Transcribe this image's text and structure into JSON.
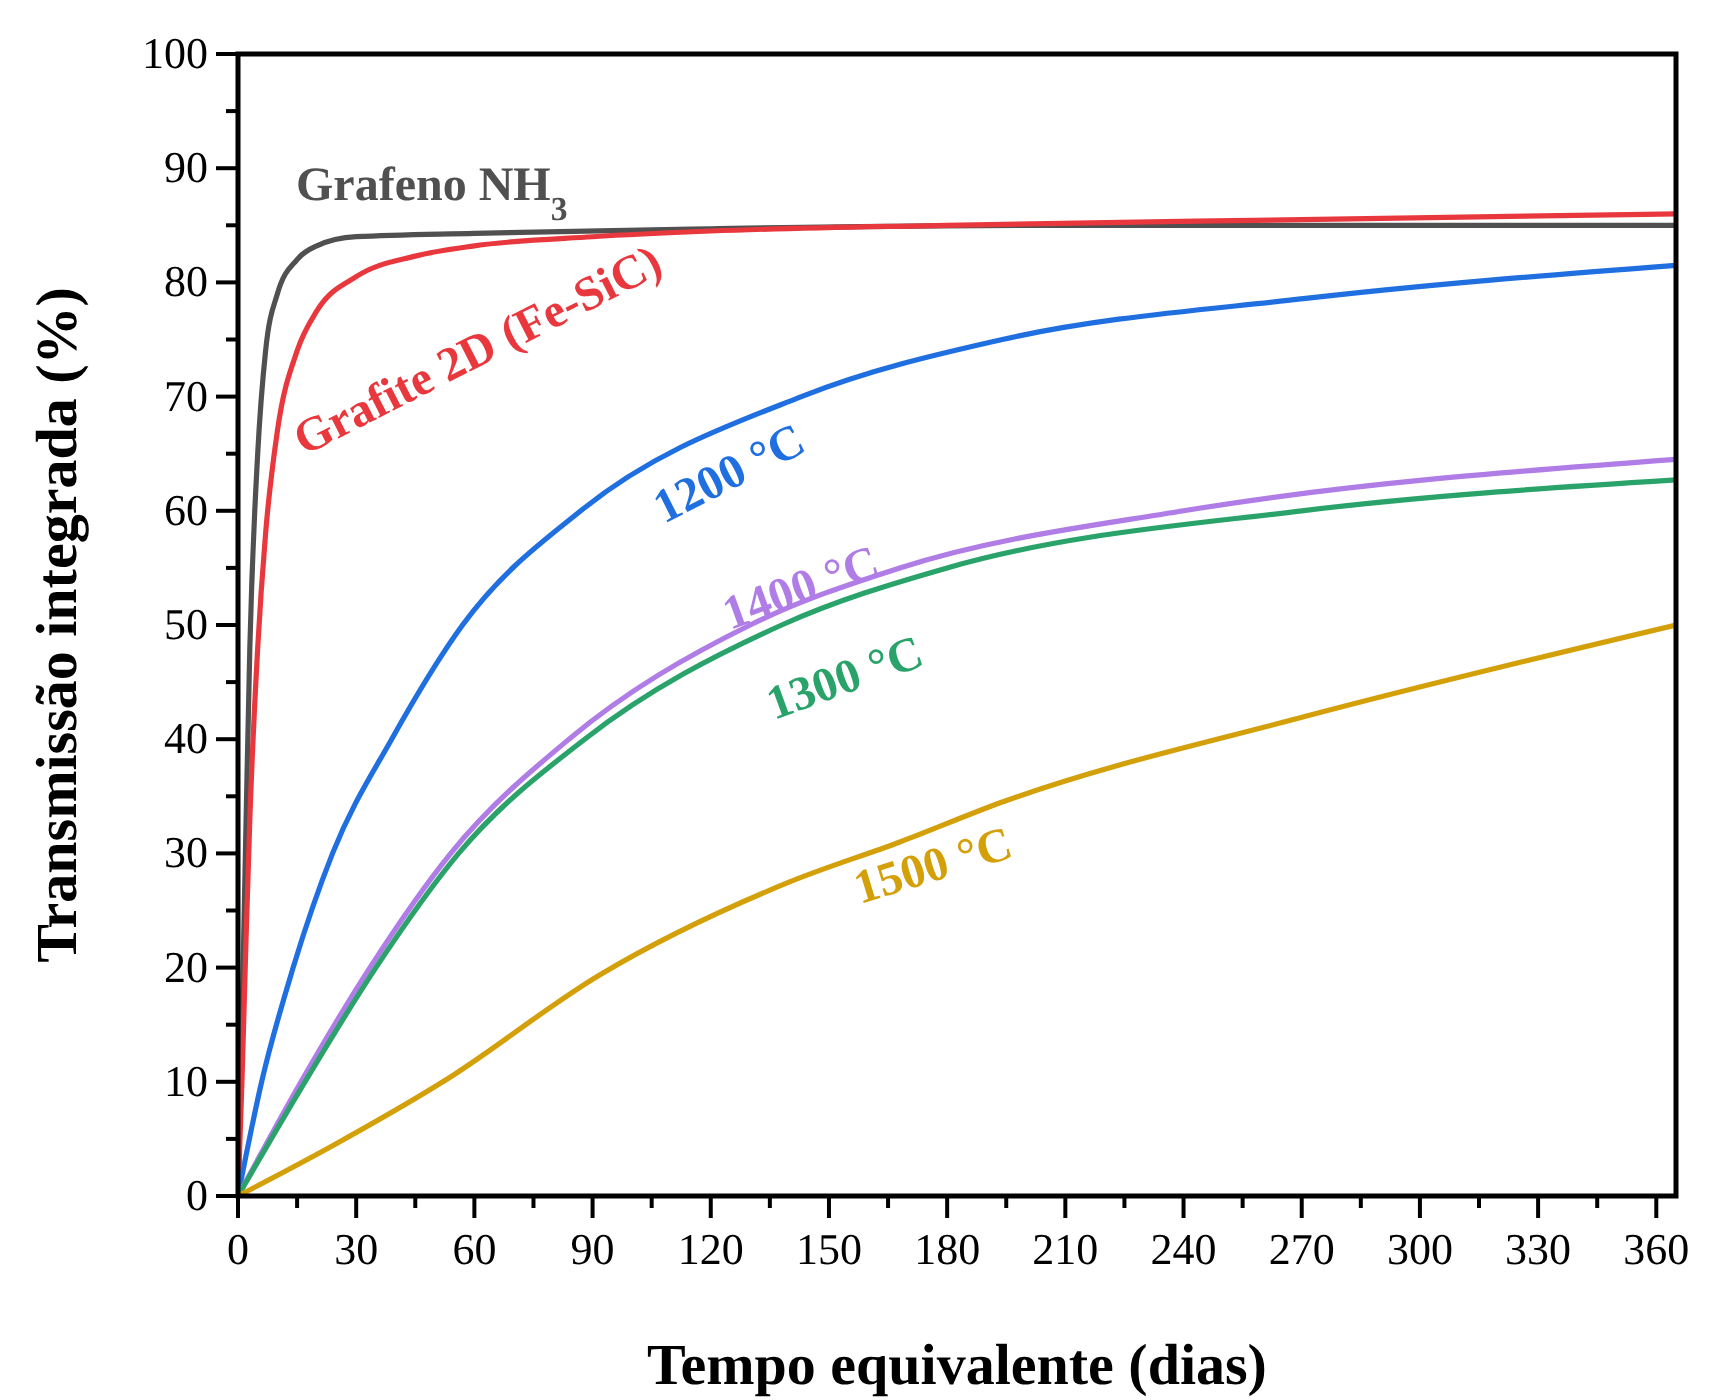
{
  "chart_data": {
    "type": "line",
    "xlabel": "Tempo equivalente (dias)",
    "ylabel": "Transmissão integrada (%)",
    "xlim": [
      0,
      365
    ],
    "ylim": [
      0,
      100
    ],
    "xticks": [
      0,
      {
        "value": 15,
        "label": null
      },
      30,
      {
        "value": 45,
        "label": null
      },
      60,
      {
        "value": 75,
        "label": null
      },
      90,
      {
        "value": 105,
        "label": null
      },
      120,
      {
        "value": 135,
        "label": null
      },
      150,
      {
        "value": 165,
        "label": null
      },
      180,
      {
        "value": 195,
        "label": null
      },
      210,
      {
        "value": 225,
        "label": null
      },
      240,
      {
        "value": 255,
        "label": null
      },
      270,
      {
        "value": 285,
        "label": null
      },
      300,
      {
        "value": 315,
        "label": null
      },
      330,
      {
        "value": 345,
        "label": null
      },
      360
    ],
    "yticks": [
      0,
      {
        "value": 5,
        "label": null
      },
      10,
      {
        "value": 15,
        "label": null
      },
      20,
      {
        "value": 25,
        "label": null
      },
      30,
      {
        "value": 35,
        "label": null
      },
      40,
      {
        "value": 45,
        "label": null
      },
      50,
      {
        "value": 55,
        "label": null
      },
      60,
      {
        "value": 65,
        "label": null
      },
      70,
      {
        "value": 75,
        "label": null
      },
      80,
      {
        "value": 85,
        "label": null
      },
      90,
      {
        "value": 95,
        "label": null
      },
      100
    ],
    "grid": false,
    "marker": "none",
    "line_style": "solid",
    "series": [
      {
        "name": "Grafeno NH$_{3}$",
        "color": "#505050",
        "x": [
          0,
          1,
          2,
          3,
          5,
          7,
          10,
          15,
          20,
          30,
          60,
          120,
          200,
          365
        ],
        "values": [
          0,
          15,
          32,
          48,
          65,
          74,
          79,
          82,
          83.2,
          84,
          84.3,
          84.7,
          85,
          85
        ]
      },
      {
        "name": "Grafite 2D (Fe-SiC)",
        "color": "#e8383d",
        "x": [
          0,
          1,
          2,
          3,
          5,
          7,
          10,
          15,
          20,
          30,
          45,
          60,
          90,
          120,
          180,
          270,
          365
        ],
        "values": [
          0,
          10,
          22,
          33,
          48,
          58,
          67,
          74,
          77.5,
          80.5,
          82.3,
          83.2,
          84,
          84.5,
          85,
          85.5,
          86
        ]
      },
      {
        "name": "1200 °C",
        "color": "#1f6fe0",
        "x": [
          0,
          6,
          14,
          24,
          39,
          57,
          87,
          143,
          194,
          271,
          365
        ],
        "values": [
          0,
          10,
          20,
          30,
          40,
          50,
          60,
          70,
          75,
          78.6,
          81.5
        ]
      },
      {
        "name": "1400 °C",
        "color": "#b07ce6",
        "x": [
          0,
          16,
          33.5,
          54,
          84,
          130,
          168,
          240,
          365
        ],
        "values": [
          0,
          10,
          20,
          30,
          40,
          50,
          55,
          60,
          64.5
        ]
      },
      {
        "name": "1300 °C",
        "color": "#2aa36a",
        "x": [
          0,
          17,
          35,
          56,
          88,
          138,
          180,
          270,
          365
        ],
        "values": [
          0,
          10,
          20,
          30,
          40,
          50,
          55,
          60,
          62.7
        ]
      },
      {
        "name": "1500 °C",
        "color": "#d4a00a",
        "x": [
          0,
          24,
          52,
          92,
          140,
          168,
          194,
          271,
          365
        ],
        "values": [
          0,
          4.4,
          10,
          19.4,
          27.5,
          31,
          34.5,
          42,
          50
        ]
      }
    ]
  }
}
